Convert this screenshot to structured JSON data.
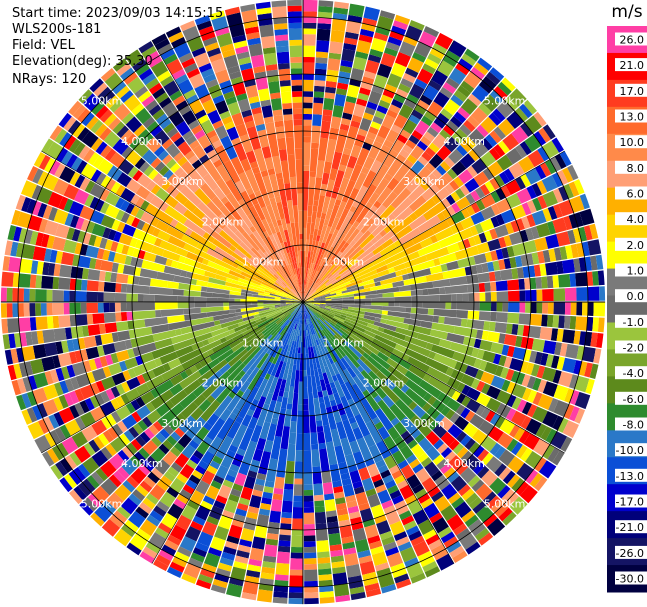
{
  "chart_data": {
    "type": "heatmap",
    "subtype": "polar-ppi-radar",
    "info": {
      "start_time": "Start time: 2023/09/03 14:15:15",
      "instrument": "WLS200s-181",
      "field": "Field: VEL",
      "elevation": "Elevation(deg): 35.30",
      "nrays": "NRays: 120"
    },
    "rays": 120,
    "range_rings_km": [
      1.0,
      2.0,
      3.0,
      4.0,
      5.0
    ],
    "ring_labels": [
      "1.00km",
      "2.00km",
      "3.00km",
      "4.00km",
      "5.00km"
    ],
    "max_range_km": 5.3,
    "colorbar": {
      "unit": "m/s",
      "ticks": [
        "26.0",
        "21.0",
        "17.0",
        "13.0",
        "10.0",
        "8.0",
        "6.0",
        "4.0",
        "2.0",
        "1.0",
        "0.0",
        "-1.0",
        "-2.0",
        "-4.0",
        "-6.0",
        "-8.0",
        "-10.0",
        "-13.0",
        "-17.0",
        "-21.0",
        "-26.0",
        "-30.0"
      ],
      "colors": [
        "#ff3ea5",
        "#ff0000",
        "#ff3b1f",
        "#ff6a2c",
        "#ff8a4a",
        "#ff9f75",
        "#ffb000",
        "#ffd400",
        "#ffff00",
        "#7a7a7a",
        "#6b6b6b",
        "#9bc53d",
        "#7aa52b",
        "#5d8a1c",
        "#2e8b2e",
        "#2a78c8",
        "#0b4fd6",
        "#0000cd",
        "#00007a",
        "#141464",
        "#000040"
      ]
    },
    "pattern": {
      "north_half": "positive velocities (approx 4 to 13 m/s, orange/red)",
      "south_half": "negative velocities (approx -2 to -10 m/s, green/blue)",
      "east_west": "near zero (gray/yellow)",
      "beyond_3.5km": "noisy multicolor"
    }
  }
}
